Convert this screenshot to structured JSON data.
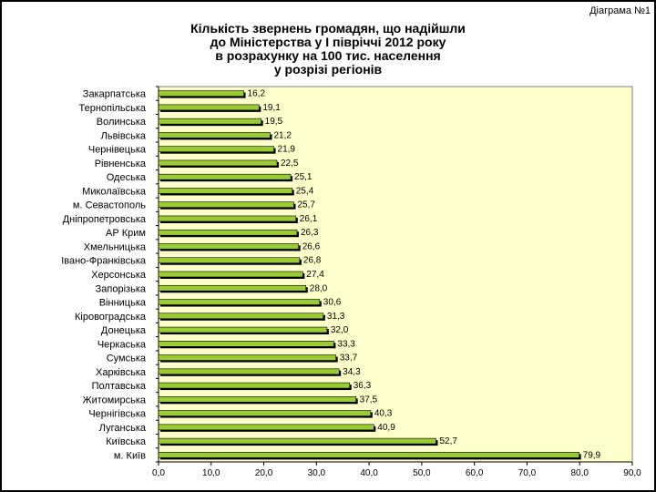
{
  "page": {
    "corner_label": "Діаграма №1"
  },
  "chart_data": {
    "type": "bar",
    "orientation": "horizontal",
    "title_lines": [
      "Кількість звернень громадян, що надійшли",
      "до Міністерства у І півріччі 2012 року",
      "в розрахунку на 100 тис. населення",
      "у розрізі регіонів"
    ],
    "categories": [
      "Закарпатська",
      "Тернопільська",
      "Волинська",
      "Львівська",
      "Чернівецька",
      "Рівненська",
      "Одеська",
      "Миколаївська",
      "м. Севастополь",
      "Дніпропетровська",
      "АР Крим",
      "Хмельницька",
      "Івано-Франківська",
      "Херсонська",
      "Запорізька",
      "Вінницька",
      "Кіровоградська",
      "Донецька",
      "Черкаська",
      "Сумська",
      "Харківська",
      "Полтавська",
      "Житомирська",
      "Чернігівська",
      "Луганська",
      "Київська",
      "м. Київ"
    ],
    "values": [
      16.2,
      19.1,
      19.5,
      21.2,
      21.9,
      22.5,
      25.1,
      25.4,
      25.7,
      26.1,
      26.3,
      26.6,
      26.8,
      27.4,
      28.0,
      30.6,
      31.3,
      32.0,
      33.3,
      33.7,
      34.3,
      36.3,
      37.5,
      40.3,
      40.9,
      52.7,
      79.9
    ],
    "value_labels": [
      "16,2",
      "19,1",
      "19,5",
      "21,2",
      "21,9",
      "22,5",
      "25,1",
      "25,4",
      "25,7",
      "26,1",
      "26,3",
      "26,6",
      "26,8",
      "27,4",
      "28,0",
      "30,6",
      "31,3",
      "32,0",
      "33,3",
      "33,7",
      "34,3",
      "36,3",
      "37,5",
      "40,3",
      "40,9",
      "52,7",
      "79,9"
    ],
    "x_ticks": [
      "0,0",
      "10,0",
      "20,0",
      "30,0",
      "40,0",
      "50,0",
      "60,0",
      "70,0",
      "80,0",
      "90,0"
    ],
    "xlim": [
      0,
      90
    ],
    "grid": false,
    "legend": "none",
    "colors": {
      "plot_bg": "#ffffcc",
      "bar": "#99cc33",
      "bar_edge": "#000000",
      "bar_shadow": "#000000"
    }
  }
}
